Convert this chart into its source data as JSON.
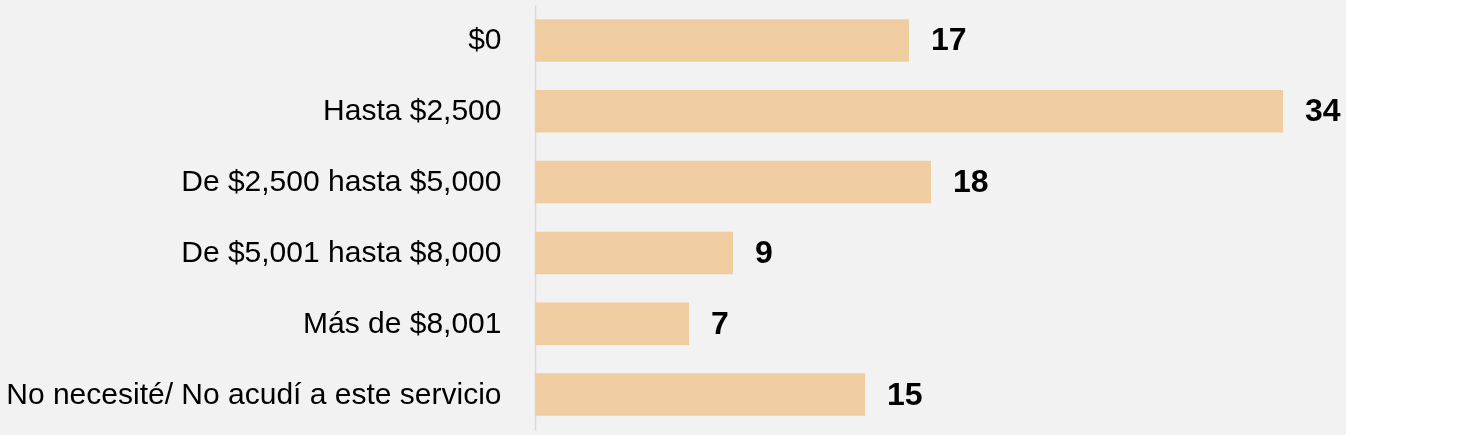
{
  "chart_data": {
    "type": "bar",
    "orientation": "horizontal",
    "categories": [
      "$0",
      "Hasta $2,500",
      "De $2,500 hasta $5,000",
      "De $5,001 hasta $8,000",
      "Más de $8,001",
      "No necesité/ No acudí a este servicio"
    ],
    "values": [
      17,
      34,
      18,
      9,
      7,
      15
    ],
    "color": "#f0cda0",
    "data_labels": true,
    "grid": false
  }
}
